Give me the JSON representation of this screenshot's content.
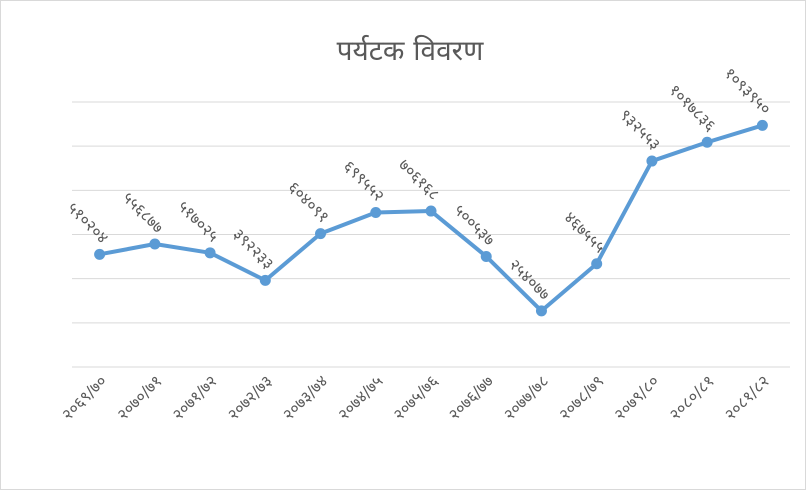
{
  "chart_data": {
    "type": "line",
    "title": "पर्यटक विवरण",
    "categories": [
      "२०६९/७०",
      "२०७०/७१",
      "२०७१/७२",
      "२०७२/७३",
      "२०७३/७४",
      "२०७४/७५",
      "२०७५/७६",
      "२०७६/७७",
      "२०७७/७८",
      "२०७८/७९",
      "२०७९/८०",
      "२०८०/८१",
      "२०८१/८२"
    ],
    "values": [
      510204,
      556877,
      517025,
      392233,
      604091,
      699552,
      706168,
      500537,
      254077,
      467555,
      932553,
      1017836,
      1093950
    ],
    "value_labels": [
      "५१०२०४",
      "५५६८७७",
      "५१७०२५",
      "३९२२३३",
      "६०४०९१",
      "६९९५५२",
      "७०६१६८",
      "५००५३७",
      "२५४०७७",
      "४६७५५५",
      "९३२५५३",
      "१०१७८३६",
      "१०९३९५०"
    ],
    "color": "#5b9bd5",
    "ylim": [
      0,
      1200000
    ],
    "yticks": [
      0,
      200000,
      400000,
      600000,
      800000,
      1000000,
      1200000
    ],
    "grid": true
  }
}
